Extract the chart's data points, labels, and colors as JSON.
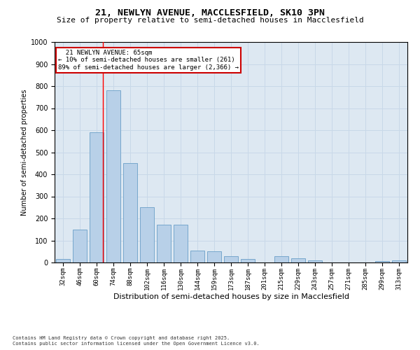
{
  "title1": "21, NEWLYN AVENUE, MACCLESFIELD, SK10 3PN",
  "title2": "Size of property relative to semi-detached houses in Macclesfield",
  "xlabel": "Distribution of semi-detached houses by size in Macclesfield",
  "ylabel": "Number of semi-detached properties",
  "categories": [
    "32sqm",
    "46sqm",
    "60sqm",
    "74sqm",
    "88sqm",
    "102sqm",
    "116sqm",
    "130sqm",
    "144sqm",
    "159sqm",
    "173sqm",
    "187sqm",
    "201sqm",
    "215sqm",
    "229sqm",
    "243sqm",
    "257sqm",
    "271sqm",
    "285sqm",
    "299sqm",
    "313sqm"
  ],
  "values": [
    15,
    150,
    590,
    780,
    450,
    250,
    170,
    170,
    55,
    50,
    30,
    15,
    0,
    30,
    20,
    10,
    0,
    0,
    0,
    5,
    10
  ],
  "bar_color": "#b8d0e8",
  "bar_edge_color": "#6a9fc8",
  "grid_color": "#c8d8e8",
  "bg_color": "#dde8f2",
  "property_label": "21 NEWLYN AVENUE: 65sqm",
  "pct_smaller": "10%",
  "n_smaller": 261,
  "pct_larger": "89%",
  "n_larger": 2366,
  "vline_x_index": 2.36,
  "annotation_box_color": "#cc0000",
  "footer": "Contains HM Land Registry data © Crown copyright and database right 2025.\nContains public sector information licensed under the Open Government Licence v3.0.",
  "ylim": [
    0,
    1000
  ],
  "yticks": [
    0,
    100,
    200,
    300,
    400,
    500,
    600,
    700,
    800,
    900,
    1000
  ],
  "title1_fontsize": 9.5,
  "title2_fontsize": 8,
  "xlabel_fontsize": 8,
  "ylabel_fontsize": 7,
  "tick_fontsize": 6.5,
  "annotation_fontsize": 6.5,
  "footer_fontsize": 5
}
